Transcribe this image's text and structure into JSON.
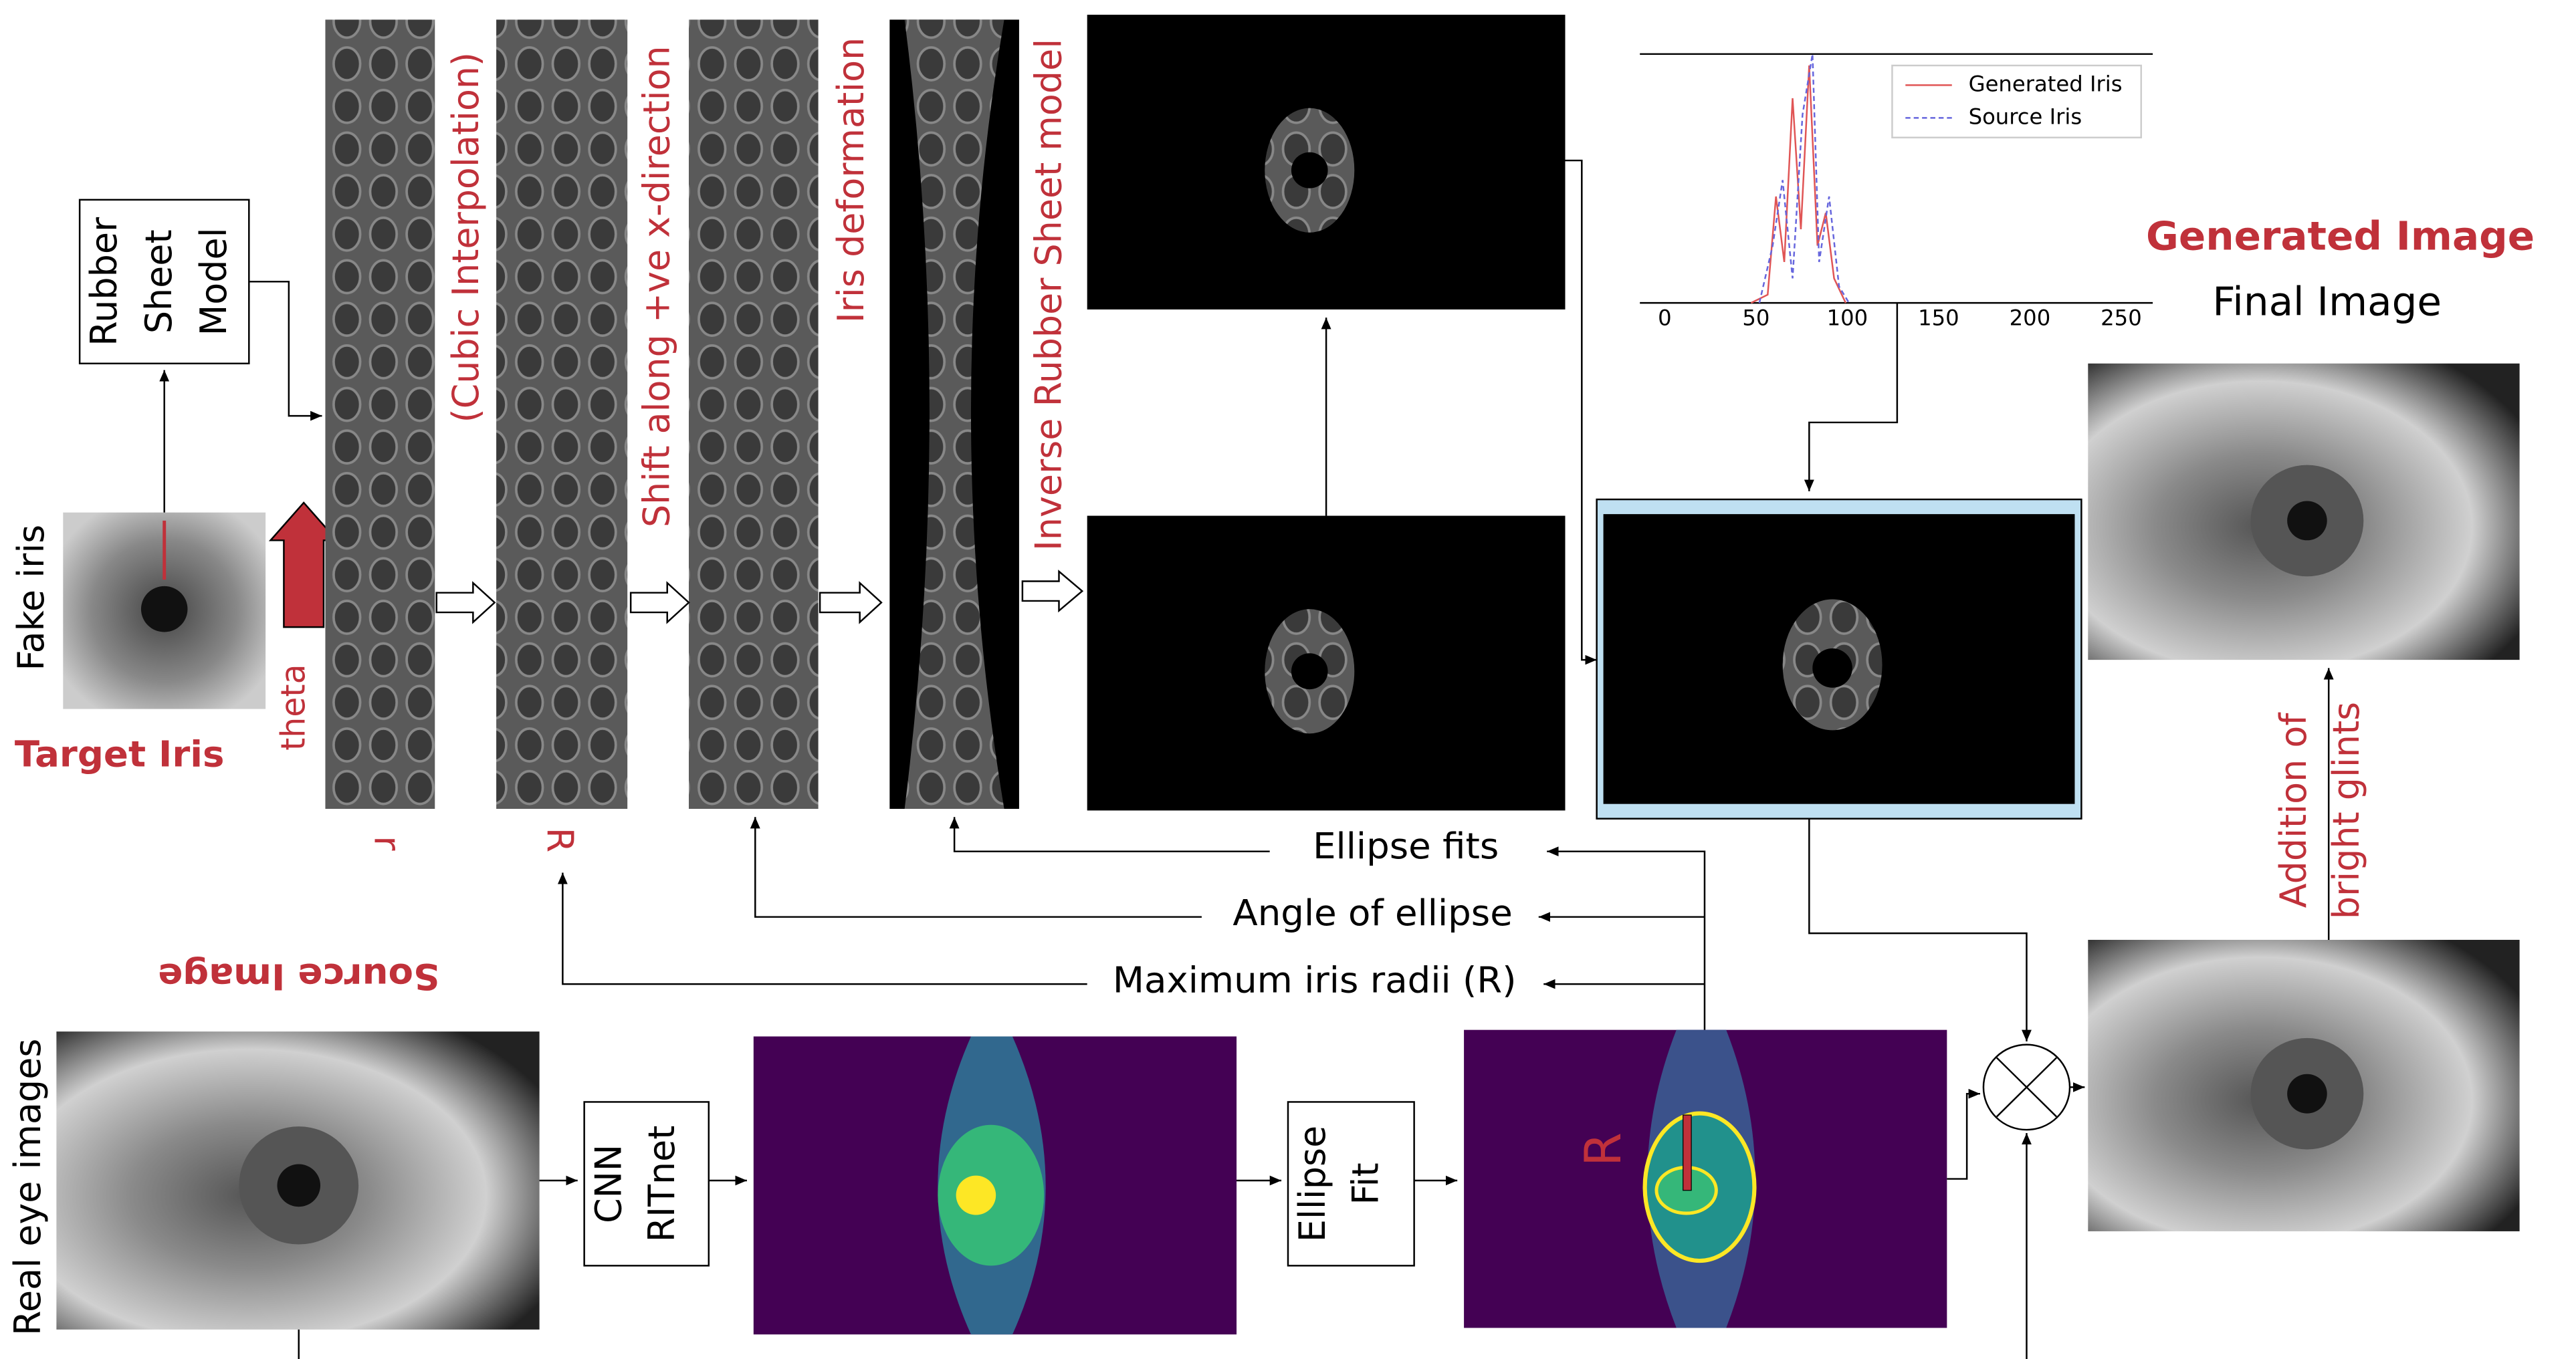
{
  "target": {
    "rubber_sheet": [
      "Rubber",
      "Sheet",
      "Model"
    ],
    "fake_iris": "Fake iris",
    "title": "Target Iris",
    "theta": "theta"
  },
  "strips": {
    "r": "r",
    "R": "R",
    "cubic": "(Cubic Interpolation)",
    "shift": "Shift along +ve x-direction",
    "deformation": "Iris deformation",
    "inverse": "Inverse Rubber Sheet model"
  },
  "histogram": {
    "legend": [
      "Generated Iris",
      "Source Iris"
    ],
    "xticks": [
      0,
      50,
      100,
      150,
      200,
      250
    ]
  },
  "output": {
    "generated": "Generated Image",
    "final": "Final Image",
    "glints": [
      "Addition of",
      "bright glints"
    ]
  },
  "feedback": {
    "ellipse_fits": "Ellipse fits",
    "angle": "Angle of ellipse",
    "radii": "Maximum iris radii (R)"
  },
  "source": {
    "title": "Source Image",
    "real": "Real eye images",
    "cnn": [
      "CNN",
      "RITnet"
    ],
    "fit": [
      "Ellipse",
      "Fit"
    ],
    "R": "R"
  }
}
